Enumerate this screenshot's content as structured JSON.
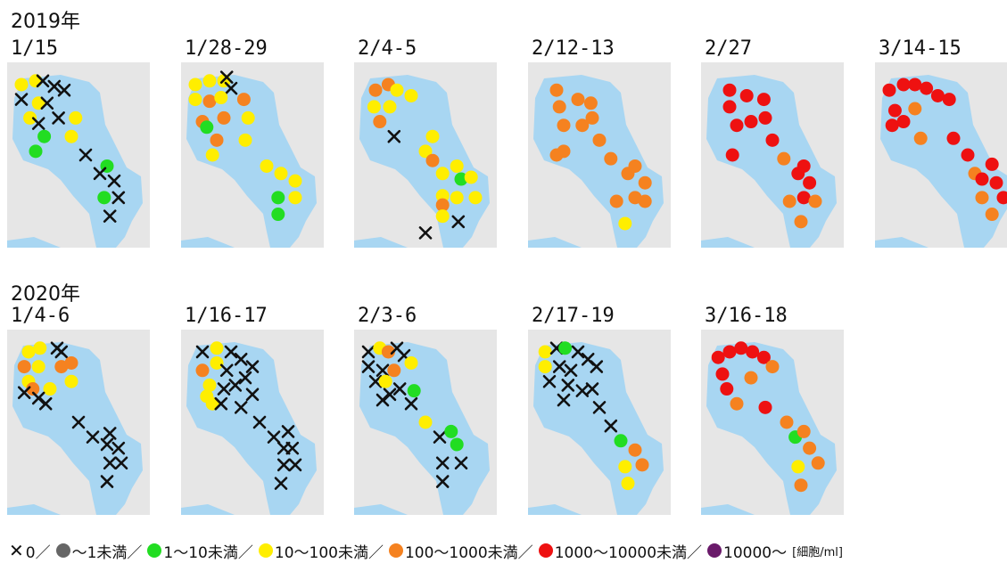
{
  "years": [
    "2019年",
    "2020年"
  ],
  "categories": {
    "x": "#111111",
    "gray": "#666666",
    "green": "#22dd22",
    "yellow": "#ffee00",
    "orange": "#f58220",
    "red": "#ee1111",
    "purple": "#6a1a6a"
  },
  "water_color": "#a8d6f2",
  "land_color": "#e6e6e6",
  "legend": {
    "items": [
      {
        "symbol": "x",
        "label": "0／"
      },
      {
        "symbol": "gray",
        "label": "～1未満／"
      },
      {
        "symbol": "green",
        "label": "1～10未満／"
      },
      {
        "symbol": "yellow",
        "label": "10～100未満／"
      },
      {
        "symbol": "orange",
        "label": "100～1000未満／"
      },
      {
        "symbol": "red",
        "label": "1000～10000未満／"
      },
      {
        "symbol": "purple",
        "label": "10000～"
      }
    ],
    "unit": "[細胞/ml]"
  },
  "panels": [
    {
      "date": "1/15",
      "points": [
        [
          "yellow",
          0.1,
          0.12
        ],
        [
          "yellow",
          0.2,
          0.1
        ],
        [
          "x",
          0.25,
          0.1
        ],
        [
          "x",
          0.33,
          0.13
        ],
        [
          "x",
          0.4,
          0.15
        ],
        [
          "x",
          0.1,
          0.2
        ],
        [
          "yellow",
          0.22,
          0.22
        ],
        [
          "x",
          0.28,
          0.22
        ],
        [
          "x",
          0.36,
          0.3
        ],
        [
          "yellow",
          0.48,
          0.3
        ],
        [
          "yellow",
          0.16,
          0.3
        ],
        [
          "x",
          0.22,
          0.33
        ],
        [
          "green",
          0.26,
          0.4
        ],
        [
          "yellow",
          0.45,
          0.4
        ],
        [
          "green",
          0.2,
          0.48
        ],
        [
          "x",
          0.55,
          0.5
        ],
        [
          "green",
          0.7,
          0.56
        ],
        [
          "x",
          0.65,
          0.6
        ],
        [
          "x",
          0.75,
          0.64
        ],
        [
          "x",
          0.78,
          0.73
        ],
        [
          "green",
          0.68,
          0.73
        ],
        [
          "x",
          0.72,
          0.83
        ]
      ]
    },
    {
      "date": "1/28-29",
      "points": [
        [
          "yellow",
          0.1,
          0.12
        ],
        [
          "yellow",
          0.2,
          0.1
        ],
        [
          "yellow",
          0.3,
          0.1
        ],
        [
          "x",
          0.32,
          0.08
        ],
        [
          "x",
          0.35,
          0.14
        ],
        [
          "yellow",
          0.1,
          0.2
        ],
        [
          "orange",
          0.2,
          0.21
        ],
        [
          "yellow",
          0.28,
          0.19
        ],
        [
          "orange",
          0.44,
          0.2
        ],
        [
          "orange",
          0.3,
          0.3
        ],
        [
          "orange",
          0.15,
          0.32
        ],
        [
          "green",
          0.18,
          0.35
        ],
        [
          "orange",
          0.25,
          0.42
        ],
        [
          "yellow",
          0.47,
          0.3
        ],
        [
          "yellow",
          0.45,
          0.42
        ],
        [
          "yellow",
          0.22,
          0.5
        ],
        [
          "yellow",
          0.6,
          0.56
        ],
        [
          "yellow",
          0.7,
          0.6
        ],
        [
          "yellow",
          0.8,
          0.64
        ],
        [
          "yellow",
          0.8,
          0.73
        ],
        [
          "green",
          0.68,
          0.73
        ],
        [
          "green",
          0.68,
          0.82
        ]
      ]
    },
    {
      "date": "2/4-5",
      "points": [
        [
          "orange",
          0.15,
          0.15
        ],
        [
          "orange",
          0.24,
          0.12
        ],
        [
          "yellow",
          0.3,
          0.15
        ],
        [
          "yellow",
          0.4,
          0.18
        ],
        [
          "yellow",
          0.14,
          0.24
        ],
        [
          "yellow",
          0.25,
          0.24
        ],
        [
          "orange",
          0.18,
          0.32
        ],
        [
          "x",
          0.28,
          0.4
        ],
        [
          "yellow",
          0.55,
          0.4
        ],
        [
          "yellow",
          0.5,
          0.48
        ],
        [
          "orange",
          0.55,
          0.53
        ],
        [
          "yellow",
          0.72,
          0.56
        ],
        [
          "yellow",
          0.62,
          0.6
        ],
        [
          "green",
          0.75,
          0.63
        ],
        [
          "yellow",
          0.82,
          0.62
        ],
        [
          "yellow",
          0.62,
          0.72
        ],
        [
          "orange",
          0.62,
          0.77
        ],
        [
          "yellow",
          0.72,
          0.73
        ],
        [
          "yellow",
          0.85,
          0.73
        ],
        [
          "yellow",
          0.62,
          0.83
        ],
        [
          "x",
          0.73,
          0.86
        ],
        [
          "x",
          0.5,
          0.92
        ]
      ]
    },
    {
      "date": "2/12-13",
      "points": [
        [
          "orange",
          0.2,
          0.15
        ],
        [
          "orange",
          0.22,
          0.24
        ],
        [
          "orange",
          0.35,
          0.2
        ],
        [
          "orange",
          0.44,
          0.22
        ],
        [
          "orange",
          0.45,
          0.3
        ],
        [
          "orange",
          0.38,
          0.34
        ],
        [
          "orange",
          0.25,
          0.34
        ],
        [
          "orange",
          0.5,
          0.42
        ],
        [
          "orange",
          0.25,
          0.48
        ],
        [
          "orange",
          0.2,
          0.5
        ],
        [
          "orange",
          0.58,
          0.52
        ],
        [
          "orange",
          0.75,
          0.56
        ],
        [
          "orange",
          0.7,
          0.6
        ],
        [
          "orange",
          0.82,
          0.65
        ],
        [
          "orange",
          0.75,
          0.73
        ],
        [
          "orange",
          0.62,
          0.75
        ],
        [
          "orange",
          0.82,
          0.75
        ],
        [
          "yellow",
          0.68,
          0.87
        ]
      ]
    },
    {
      "date": "2/27",
      "points": [
        [
          "red",
          0.2,
          0.15
        ],
        [
          "red",
          0.32,
          0.18
        ],
        [
          "red",
          0.44,
          0.2
        ],
        [
          "red",
          0.2,
          0.24
        ],
        [
          "red",
          0.45,
          0.3
        ],
        [
          "red",
          0.35,
          0.32
        ],
        [
          "red",
          0.25,
          0.34
        ],
        [
          "red",
          0.5,
          0.42
        ],
        [
          "red",
          0.22,
          0.5
        ],
        [
          "orange",
          0.58,
          0.52
        ],
        [
          "red",
          0.72,
          0.56
        ],
        [
          "red",
          0.68,
          0.6
        ],
        [
          "red",
          0.76,
          0.65
        ],
        [
          "red",
          0.72,
          0.73
        ],
        [
          "orange",
          0.62,
          0.75
        ],
        [
          "orange",
          0.8,
          0.75
        ],
        [
          "orange",
          0.7,
          0.86
        ]
      ]
    },
    {
      "date": "3/14-15",
      "points": [
        [
          "red",
          0.1,
          0.15
        ],
        [
          "red",
          0.2,
          0.12
        ],
        [
          "red",
          0.28,
          0.12
        ],
        [
          "red",
          0.36,
          0.14
        ],
        [
          "red",
          0.44,
          0.18
        ],
        [
          "red",
          0.52,
          0.2
        ],
        [
          "red",
          0.14,
          0.26
        ],
        [
          "orange",
          0.28,
          0.25
        ],
        [
          "red",
          0.2,
          0.32
        ],
        [
          "red",
          0.12,
          0.34
        ],
        [
          "orange",
          0.32,
          0.41
        ],
        [
          "red",
          0.55,
          0.41
        ],
        [
          "red",
          0.65,
          0.5
        ],
        [
          "orange",
          0.7,
          0.6
        ],
        [
          "red",
          0.82,
          0.55
        ],
        [
          "red",
          0.75,
          0.63
        ],
        [
          "red",
          0.85,
          0.65
        ],
        [
          "orange",
          0.75,
          0.73
        ],
        [
          "red",
          0.9,
          0.73
        ],
        [
          "orange",
          0.82,
          0.82
        ]
      ]
    },
    {
      "date": "1/4-6",
      "points": [
        [
          "yellow",
          0.15,
          0.12
        ],
        [
          "yellow",
          0.23,
          0.1
        ],
        [
          "x",
          0.38,
          0.12
        ],
        [
          "x",
          0.35,
          0.1
        ],
        [
          "orange",
          0.12,
          0.2
        ],
        [
          "yellow",
          0.22,
          0.2
        ],
        [
          "orange",
          0.45,
          0.18
        ],
        [
          "orange",
          0.38,
          0.2
        ],
        [
          "yellow",
          0.15,
          0.28
        ],
        [
          "orange",
          0.18,
          0.32
        ],
        [
          "x",
          0.12,
          0.34
        ],
        [
          "yellow",
          0.3,
          0.32
        ],
        [
          "yellow",
          0.45,
          0.28
        ],
        [
          "x",
          0.22,
          0.37
        ],
        [
          "x",
          0.27,
          0.4
        ],
        [
          "x",
          0.5,
          0.5
        ],
        [
          "x",
          0.6,
          0.58
        ],
        [
          "x",
          0.72,
          0.56
        ],
        [
          "x",
          0.7,
          0.62
        ],
        [
          "x",
          0.78,
          0.64
        ],
        [
          "x",
          0.72,
          0.72
        ],
        [
          "x",
          0.8,
          0.72
        ],
        [
          "x",
          0.7,
          0.82
        ]
      ]
    },
    {
      "date": "1/16-17",
      "points": [
        [
          "x",
          0.15,
          0.12
        ],
        [
          "yellow",
          0.25,
          0.1
        ],
        [
          "x",
          0.35,
          0.12
        ],
        [
          "x",
          0.42,
          0.16
        ],
        [
          "x",
          0.5,
          0.2
        ],
        [
          "orange",
          0.15,
          0.22
        ],
        [
          "yellow",
          0.25,
          0.18
        ],
        [
          "x",
          0.32,
          0.22
        ],
        [
          "x",
          0.45,
          0.26
        ],
        [
          "x",
          0.38,
          0.3
        ],
        [
          "yellow",
          0.2,
          0.3
        ],
        [
          "x",
          0.3,
          0.32
        ],
        [
          "yellow",
          0.18,
          0.36
        ],
        [
          "yellow",
          0.22,
          0.4
        ],
        [
          "x",
          0.28,
          0.4
        ],
        [
          "x",
          0.5,
          0.35
        ],
        [
          "x",
          0.42,
          0.42
        ],
        [
          "x",
          0.55,
          0.5
        ],
        [
          "x",
          0.65,
          0.58
        ],
        [
          "x",
          0.75,
          0.55
        ],
        [
          "x",
          0.72,
          0.64
        ],
        [
          "x",
          0.78,
          0.64
        ],
        [
          "x",
          0.72,
          0.73
        ],
        [
          "x",
          0.8,
          0.73
        ],
        [
          "x",
          0.7,
          0.83
        ]
      ]
    },
    {
      "date": "2/3-6",
      "points": [
        [
          "x",
          0.1,
          0.12
        ],
        [
          "yellow",
          0.18,
          0.1
        ],
        [
          "orange",
          0.24,
          0.12
        ],
        [
          "x",
          0.3,
          0.1
        ],
        [
          "x",
          0.35,
          0.14
        ],
        [
          "x",
          0.1,
          0.2
        ],
        [
          "x",
          0.2,
          0.22
        ],
        [
          "orange",
          0.28,
          0.22
        ],
        [
          "yellow",
          0.4,
          0.18
        ],
        [
          "x",
          0.15,
          0.28
        ],
        [
          "yellow",
          0.22,
          0.28
        ],
        [
          "x",
          0.32,
          0.32
        ],
        [
          "x",
          0.25,
          0.35
        ],
        [
          "x",
          0.2,
          0.38
        ],
        [
          "green",
          0.42,
          0.33
        ],
        [
          "x",
          0.4,
          0.4
        ],
        [
          "yellow",
          0.5,
          0.5
        ],
        [
          "x",
          0.6,
          0.58
        ],
        [
          "green",
          0.68,
          0.55
        ],
        [
          "green",
          0.72,
          0.62
        ],
        [
          "x",
          0.62,
          0.72
        ],
        [
          "x",
          0.75,
          0.72
        ],
        [
          "x",
          0.62,
          0.82
        ]
      ]
    },
    {
      "date": "2/17-19",
      "points": [
        [
          "yellow",
          0.12,
          0.12
        ],
        [
          "x",
          0.2,
          0.1
        ],
        [
          "green",
          0.26,
          0.1
        ],
        [
          "x",
          0.35,
          0.12
        ],
        [
          "x",
          0.42,
          0.16
        ],
        [
          "yellow",
          0.12,
          0.2
        ],
        [
          "x",
          0.22,
          0.2
        ],
        [
          "x",
          0.3,
          0.22
        ],
        [
          "x",
          0.48,
          0.2
        ],
        [
          "x",
          0.15,
          0.28
        ],
        [
          "x",
          0.28,
          0.3
        ],
        [
          "x",
          0.38,
          0.33
        ],
        [
          "x",
          0.45,
          0.32
        ],
        [
          "x",
          0.25,
          0.38
        ],
        [
          "x",
          0.5,
          0.42
        ],
        [
          "x",
          0.58,
          0.52
        ],
        [
          "green",
          0.65,
          0.6
        ],
        [
          "orange",
          0.75,
          0.65
        ],
        [
          "orange",
          0.8,
          0.73
        ],
        [
          "yellow",
          0.68,
          0.74
        ],
        [
          "yellow",
          0.7,
          0.83
        ]
      ]
    },
    {
      "date": "3/16-18",
      "points": [
        [
          "red",
          0.12,
          0.15
        ],
        [
          "red",
          0.2,
          0.12
        ],
        [
          "red",
          0.28,
          0.1
        ],
        [
          "red",
          0.36,
          0.12
        ],
        [
          "red",
          0.44,
          0.15
        ],
        [
          "orange",
          0.5,
          0.2
        ],
        [
          "red",
          0.15,
          0.24
        ],
        [
          "orange",
          0.35,
          0.26
        ],
        [
          "red",
          0.18,
          0.32
        ],
        [
          "orange",
          0.25,
          0.4
        ],
        [
          "red",
          0.45,
          0.42
        ],
        [
          "orange",
          0.6,
          0.5
        ],
        [
          "green",
          0.66,
          0.58
        ],
        [
          "orange",
          0.72,
          0.55
        ],
        [
          "orange",
          0.76,
          0.64
        ],
        [
          "orange",
          0.82,
          0.72
        ],
        [
          "yellow",
          0.68,
          0.74
        ],
        [
          "orange",
          0.7,
          0.84
        ]
      ]
    }
  ]
}
